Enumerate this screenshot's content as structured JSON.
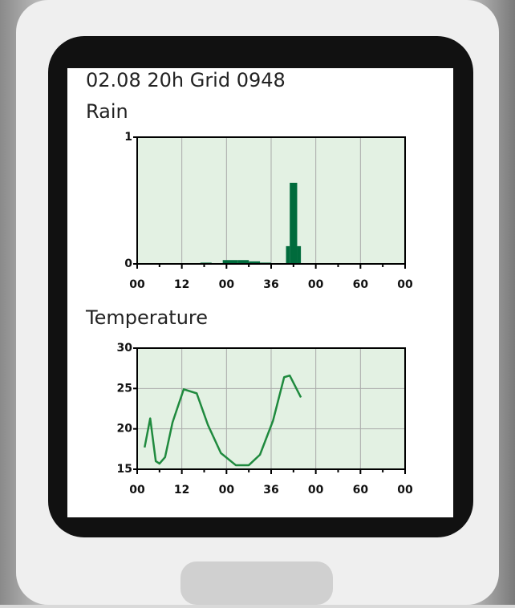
{
  "header": {
    "title": "02.08 20h Grid 0948"
  },
  "chart_data": [
    {
      "type": "histogram",
      "title": "Rain",
      "bins": [
        17,
        20,
        23,
        27,
        30,
        33,
        36,
        40,
        41,
        43,
        44
      ],
      "values": [
        0.01,
        0,
        0.03,
        0.03,
        0.02,
        0.01,
        0,
        0.14,
        0.64,
        0.14
      ],
      "color": "#006b3c",
      "xlim": [
        0,
        72
      ],
      "xticks": [
        {
          "value": 0,
          "label": "00"
        },
        12,
        {
          "value": 24,
          "label": "00"
        },
        36,
        {
          "value": 48,
          "label": "00"
        },
        60,
        {
          "value": 72,
          "label": "00"
        }
      ],
      "ylim": [
        0,
        1
      ],
      "yticks": [
        0,
        1
      ],
      "grid": true
    },
    {
      "type": "line",
      "title": "Temperature",
      "x": [
        2,
        3.5,
        5,
        6,
        7.5,
        9.5,
        12.5,
        16,
        19,
        22.5,
        26.5,
        30,
        33,
        36.5,
        39.5,
        41,
        44
      ],
      "values": [
        17.7,
        21.3,
        16.0,
        15.7,
        16.5,
        20.8,
        24.9,
        24.4,
        20.5,
        17.0,
        15.5,
        15.5,
        16.8,
        21.0,
        26.4,
        26.6,
        23.9
      ],
      "color": "#1f8a3e",
      "xlim": [
        0,
        72
      ],
      "xticks": [
        {
          "value": 0,
          "label": "00"
        },
        12,
        {
          "value": 24,
          "label": "00"
        },
        36,
        {
          "value": 48,
          "label": "00"
        },
        60,
        {
          "value": 72,
          "label": "00"
        }
      ],
      "ylim": [
        15,
        30
      ],
      "yticks": [
        15,
        20,
        25,
        30
      ],
      "grid": true
    }
  ]
}
